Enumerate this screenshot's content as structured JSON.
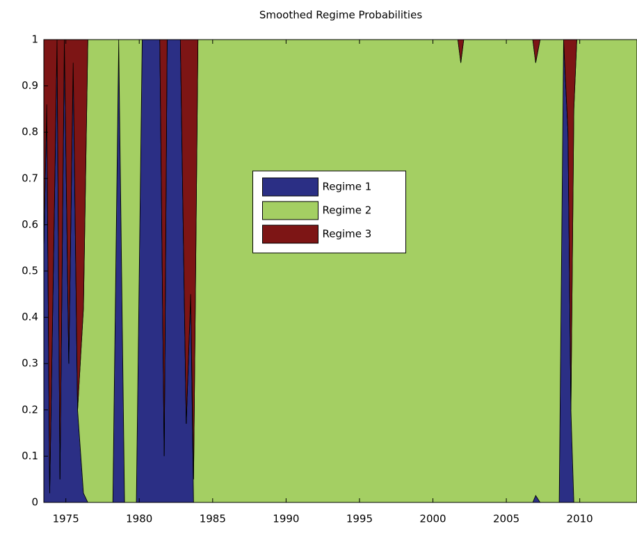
{
  "chart_data": {
    "type": "stacked-area",
    "title": "Smoothed Regime Probabilities",
    "x": [
      1973.5,
      1973.7,
      1973.9,
      1974.2,
      1974.4,
      1974.6,
      1974.9,
      1975.2,
      1975.5,
      1975.8,
      1976.2,
      1976.5,
      1978.2,
      1978.6,
      1979.0,
      1979.8,
      1980.2,
      1981.4,
      1981.7,
      1981.9,
      1982.8,
      1983.2,
      1983.5,
      1983.7,
      1984.0,
      2001.7,
      2001.9,
      2002.1,
      2006.8,
      2007.0,
      2007.3,
      2008.6,
      2008.9,
      2009.2,
      2009.4,
      2009.6,
      2009.8,
      2013.9
    ],
    "series": [
      {
        "name": "Regime 1",
        "color": "#2b2f85",
        "values": [
          0.55,
          0.86,
          0.02,
          0.6,
          1,
          0.05,
          1,
          0.3,
          0.95,
          0.2,
          0.02,
          0,
          0,
          1,
          0,
          0,
          1,
          1,
          0.1,
          1,
          1,
          0.17,
          0.45,
          0,
          0,
          0,
          0,
          0,
          0,
          0.015,
          0,
          0,
          1,
          0.8,
          0.2,
          0,
          0,
          0
        ]
      },
      {
        "name": "Regime 2",
        "color": "#a4cf63",
        "values": [
          0,
          0,
          0,
          0,
          0,
          0,
          0,
          0,
          0,
          0,
          0.4,
          1,
          1,
          0,
          1,
          1,
          0,
          0,
          0,
          0,
          0,
          0,
          0,
          0.05,
          1,
          1,
          0.95,
          1,
          1,
          0.935,
          1,
          1,
          0,
          0,
          0,
          0.85,
          1,
          1
        ]
      },
      {
        "name": "Regime 3",
        "color": "#7d1515",
        "values": [
          0.45,
          0.14,
          0.98,
          0.4,
          0,
          0.95,
          0,
          0.7,
          0.05,
          0.8,
          0.58,
          0,
          0,
          0,
          0,
          0,
          0,
          0,
          0.9,
          0,
          0,
          0.83,
          0.55,
          0.95,
          0,
          0,
          0.05,
          0,
          0,
          0.05,
          0,
          0,
          0,
          0.2,
          0.8,
          0.15,
          0,
          0
        ]
      }
    ],
    "xlim": [
      1973.5,
      2013.9
    ],
    "xticks": [
      1975,
      1980,
      1985,
      1990,
      1995,
      2000,
      2005,
      2010
    ],
    "ylim": [
      0,
      1
    ],
    "yticks": [
      0,
      0.1,
      0.2,
      0.3,
      0.4,
      0.5,
      0.6,
      0.7,
      0.8,
      0.9,
      1
    ],
    "legend": "center"
  }
}
